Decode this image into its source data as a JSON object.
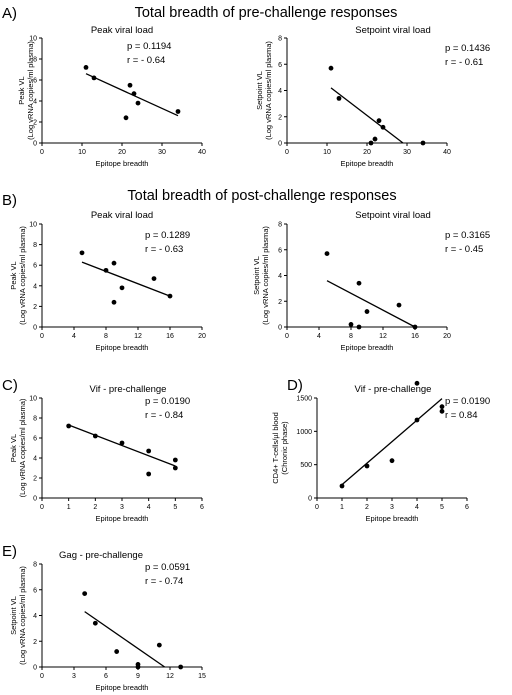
{
  "sections": {
    "A": {
      "letter": "A)",
      "title": "Total breadth of pre-challenge responses"
    },
    "B": {
      "letter": "B)",
      "title": "Total breadth of post-challenge responses"
    }
  },
  "colors": {
    "ink": "#000000",
    "background": "#ffffff"
  },
  "chart_data": [
    {
      "id": "A-peak",
      "type": "scatter",
      "letter": "",
      "title": "Peak viral load",
      "xlabel": "Epitope breadth",
      "ylabel": [
        "Peak VL",
        "(Log vRNA copies/ml plasma)"
      ],
      "xlim": [
        0,
        40
      ],
      "xticks": [
        0,
        10,
        20,
        30,
        40
      ],
      "ylim": [
        0,
        10
      ],
      "yticks": [
        0,
        2,
        4,
        6,
        8,
        10
      ],
      "x": [
        11,
        13,
        21,
        22,
        23,
        24,
        34
      ],
      "y": [
        7.2,
        6.2,
        2.4,
        5.5,
        4.7,
        3.8,
        3.0
      ],
      "fit": [
        [
          11,
          6.6
        ],
        [
          34,
          2.6
        ]
      ],
      "stats": [
        "p = 0.1194",
        "r = - 0.64"
      ]
    },
    {
      "id": "A-setpoint",
      "type": "scatter",
      "letter": "",
      "title": "Setpoint viral load",
      "xlabel": "Epitope breadth",
      "ylabel": [
        "Setpoint VL",
        "(Log vRNA copies/ml plasma)"
      ],
      "xlim": [
        0,
        40
      ],
      "xticks": [
        0,
        10,
        20,
        30,
        40
      ],
      "ylim": [
        0,
        8
      ],
      "yticks": [
        0,
        2,
        4,
        6,
        8
      ],
      "x": [
        11,
        13,
        21,
        22,
        23,
        24,
        34
      ],
      "y": [
        5.7,
        3.4,
        0.0,
        0.3,
        1.7,
        1.2,
        0.0
      ],
      "fit": [
        [
          11,
          4.2
        ],
        [
          29,
          0.0
        ]
      ],
      "stats": [
        "p = 0.1436",
        "r = - 0.61"
      ]
    },
    {
      "id": "B-peak",
      "type": "scatter",
      "letter": "",
      "title": "Peak viral load",
      "xlabel": "Epitope breadth",
      "ylabel": [
        "Peak VL",
        "(Log vRNA copies/ml plasma)"
      ],
      "xlim": [
        0,
        20
      ],
      "xticks": [
        0,
        4,
        8,
        12,
        16,
        20
      ],
      "ylim": [
        0,
        10
      ],
      "yticks": [
        0,
        2,
        4,
        6,
        8,
        10
      ],
      "x": [
        5,
        8,
        9,
        9,
        10,
        14,
        16
      ],
      "y": [
        7.2,
        5.5,
        6.2,
        2.4,
        3.8,
        4.7,
        3.0
      ],
      "fit": [
        [
          5,
          6.3
        ],
        [
          16,
          3.0
        ]
      ],
      "stats": [
        "p = 0.1289",
        "r = - 0.63"
      ]
    },
    {
      "id": "B-setpoint",
      "type": "scatter",
      "letter": "",
      "title": "Setpoint viral load",
      "xlabel": "Epitope breadth",
      "ylabel": [
        "Setpoint VL",
        "(Log vRNA copies/ml plasma)"
      ],
      "xlim": [
        0,
        20
      ],
      "xticks": [
        0,
        4,
        8,
        12,
        16,
        20
      ],
      "ylim": [
        0,
        8
      ],
      "yticks": [
        0,
        2,
        4,
        6,
        8
      ],
      "x": [
        5,
        8,
        9,
        9,
        10,
        14,
        16
      ],
      "y": [
        5.7,
        0.2,
        3.4,
        0.0,
        1.2,
        1.7,
        0.0
      ],
      "fit": [
        [
          5,
          3.6
        ],
        [
          16,
          0.0
        ]
      ],
      "stats": [
        "p = 0.3165",
        "r = - 0.45"
      ]
    },
    {
      "id": "C",
      "type": "scatter",
      "letter": "C)",
      "title": "Vif - pre-challenge",
      "xlabel": "Epitope breadth",
      "ylabel": [
        "Peak VL",
        "(Log vRNA copies/ml plasma)"
      ],
      "xlim": [
        0,
        6
      ],
      "xticks": [
        0,
        1,
        2,
        3,
        4,
        5,
        6
      ],
      "ylim": [
        0,
        10
      ],
      "yticks": [
        0,
        2,
        4,
        6,
        8,
        10
      ],
      "x": [
        1,
        2,
        3,
        4,
        4,
        5,
        5
      ],
      "y": [
        7.2,
        6.2,
        5.5,
        4.7,
        2.4,
        3.8,
        3.0
      ],
      "fit": [
        [
          1,
          7.3
        ],
        [
          5,
          3.2
        ]
      ],
      "stats": [
        "p = 0.0190",
        "r = - 0.84"
      ]
    },
    {
      "id": "D",
      "type": "scatter",
      "letter": "D)",
      "title": "Vif - pre-challenge",
      "xlabel": "Epitope breadth",
      "ylabel": [
        "CD4+ T-cells/µl blood",
        "(Chronic phase)"
      ],
      "xlim": [
        0,
        6
      ],
      "xticks": [
        0,
        1,
        2,
        3,
        4,
        5,
        6
      ],
      "ylim": [
        0,
        1500
      ],
      "yticks": [
        0,
        500,
        1000,
        1500
      ],
      "x": [
        1,
        2,
        3,
        4,
        4,
        5,
        5
      ],
      "y": [
        180,
        480,
        560,
        1170,
        1720,
        1300,
        1370
      ],
      "fit": [
        [
          1,
          200
        ],
        [
          5,
          1490
        ]
      ],
      "stats": [
        "p = 0.0190",
        "r = 0.84"
      ]
    },
    {
      "id": "E",
      "type": "scatter",
      "letter": "E)",
      "title": "Gag - pre-challenge",
      "xlabel": "Epitope breadth",
      "ylabel": [
        "Setpoint VL",
        "(Log vRNA copies/ml plasma)"
      ],
      "xlim": [
        0,
        15
      ],
      "xticks": [
        0,
        3,
        6,
        9,
        12,
        15
      ],
      "ylim": [
        0,
        8
      ],
      "yticks": [
        0,
        2,
        4,
        6,
        8
      ],
      "x": [
        4,
        5,
        7,
        9,
        9,
        11,
        13
      ],
      "y": [
        5.7,
        3.4,
        1.2,
        0.2,
        0.0,
        1.7,
        0.0
      ],
      "fit": [
        [
          4,
          4.3
        ],
        [
          11.5,
          0.0
        ]
      ],
      "stats": [
        "p = 0.0591",
        "r = - 0.74"
      ]
    }
  ]
}
